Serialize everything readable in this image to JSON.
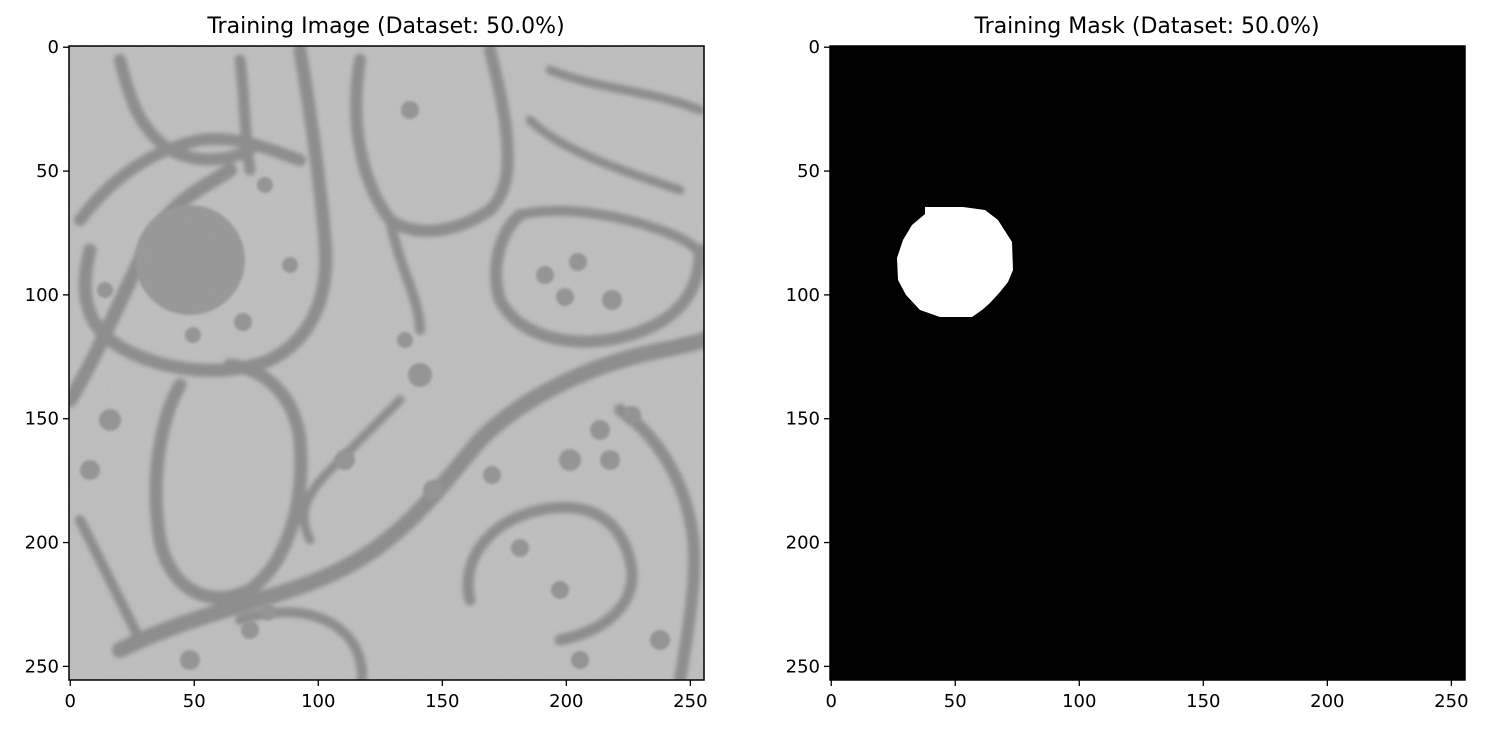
{
  "panels": [
    {
      "title": "Training Image (Dataset: 50.0%)",
      "kind": "grayscale-micrograph",
      "axes": {
        "xticks": [
          "0",
          "50",
          "100",
          "150",
          "200",
          "250"
        ],
        "yticks": [
          "0",
          "50",
          "100",
          "150",
          "200",
          "250"
        ],
        "xlim": [
          0,
          255
        ],
        "ylim": [
          255,
          0
        ]
      }
    },
    {
      "title": "Training Mask (Dataset: 50.0%)",
      "kind": "binary-mask",
      "axes": {
        "xticks": [
          "0",
          "50",
          "100",
          "150",
          "200",
          "250"
        ],
        "yticks": [
          "0",
          "50",
          "100",
          "150",
          "200",
          "250"
        ],
        "xlim": [
          0,
          255
        ],
        "ylim": [
          255,
          0
        ]
      },
      "mask_blob": {
        "center_x": 51,
        "center_y": 87,
        "radius": 23
      }
    }
  ],
  "colors": {
    "background": "#ffffff",
    "mask_background": "#000000",
    "mask_foreground": "#ffffff",
    "micrograph_light": "#c6c6c6",
    "micrograph_dark": "#545454"
  }
}
